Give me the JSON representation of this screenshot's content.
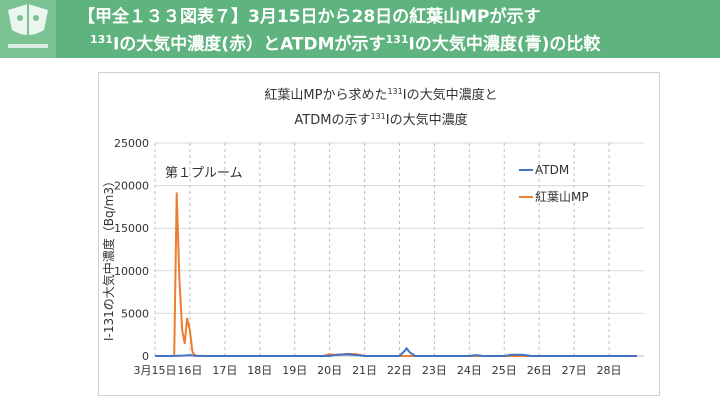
{
  "slide": {
    "title_line1": "【甲全１３３図表７】3月15日から28日の紅葉山MPが示す",
    "title_line2_sup1": "131",
    "title_line2_a": "Iの大気中濃度(赤）とATDMが示す",
    "title_line2_sup2": "131",
    "title_line2_b": "Iの大気中濃度(青)の比較"
  },
  "colors": {
    "header_bg": "#5fb37e",
    "atdm": "#4472c4",
    "mp": "#ed7d31"
  },
  "chart_data": {
    "type": "line",
    "title_line1_a": "紅葉山MPから求めた",
    "title_line1_sup": "131",
    "title_line1_b": "Iの大気中濃度と",
    "title_line2_a": "ATDMの示す",
    "title_line2_sup": "131",
    "title_line2_b": "Iの大気中濃度",
    "ylabel": "I-131の大気中濃度（Bq/m3）",
    "xlabel": "",
    "ylim": [
      0,
      25000
    ],
    "yticks": [
      "0",
      "5000",
      "10000",
      "15000",
      "20000",
      "25000"
    ],
    "xlim": [
      15,
      29
    ],
    "xticks": [
      "3月15日",
      "16日",
      "17日",
      "18日",
      "19日",
      "20日",
      "21日",
      "22日",
      "23日",
      "24日",
      "25日",
      "26日",
      "27日",
      "28日"
    ],
    "annotation": "第１プルーム",
    "legend": "top-right",
    "series": [
      {
        "name": "ATDM",
        "points": [
          [
            15.0,
            0
          ],
          [
            15.5,
            0
          ],
          [
            15.8,
            50
          ],
          [
            16.0,
            80
          ],
          [
            16.2,
            30
          ],
          [
            16.5,
            0
          ],
          [
            20.0,
            0
          ],
          [
            20.2,
            150
          ],
          [
            20.5,
            200
          ],
          [
            20.8,
            80
          ],
          [
            21.0,
            0
          ],
          [
            22.0,
            0
          ],
          [
            22.15,
            600
          ],
          [
            22.2,
            900
          ],
          [
            22.3,
            400
          ],
          [
            22.45,
            0
          ],
          [
            24.0,
            0
          ],
          [
            24.2,
            100
          ],
          [
            24.4,
            0
          ],
          [
            25.0,
            0
          ],
          [
            25.2,
            150
          ],
          [
            25.5,
            150
          ],
          [
            25.8,
            0
          ],
          [
            28.8,
            0
          ]
        ]
      },
      {
        "name": "紅葉山MP",
        "points": [
          [
            15.0,
            0
          ],
          [
            15.55,
            0
          ],
          [
            15.62,
            19100
          ],
          [
            15.7,
            9000
          ],
          [
            15.78,
            3000
          ],
          [
            15.85,
            1500
          ],
          [
            15.92,
            4400
          ],
          [
            16.0,
            3000
          ],
          [
            16.07,
            500
          ],
          [
            16.15,
            0
          ],
          [
            19.8,
            0
          ],
          [
            20.0,
            200
          ],
          [
            20.2,
            100
          ],
          [
            20.5,
            250
          ],
          [
            20.8,
            200
          ],
          [
            21.0,
            0
          ],
          [
            28.8,
            0
          ]
        ]
      }
    ]
  }
}
